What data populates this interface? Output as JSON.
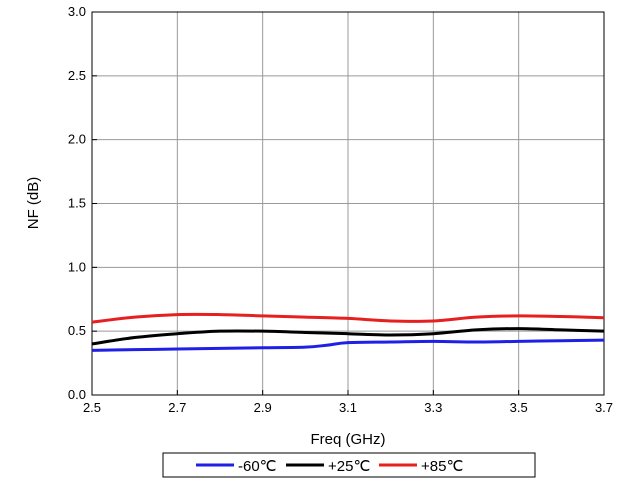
{
  "chart_data": {
    "type": "line",
    "xlabel": "Freq (GHz)",
    "ylabel": "NF (dB)",
    "xlim": [
      2.5,
      3.7
    ],
    "ylim": [
      0.0,
      3.0
    ],
    "xticks": [
      "2.5",
      "2.7",
      "2.9",
      "3.1",
      "3.3",
      "3.5",
      "3.7"
    ],
    "yticks": [
      "0.0",
      "0.5",
      "1.0",
      "1.5",
      "2.0",
      "2.5",
      "3.0"
    ],
    "grid": true,
    "legend_position": "bottom",
    "series": [
      {
        "name": "-60℃",
        "color": "#1f1fe6",
        "x": [
          2.5,
          2.6,
          2.7,
          2.8,
          2.9,
          3.0,
          3.05,
          3.1,
          3.2,
          3.3,
          3.4,
          3.5,
          3.6,
          3.7
        ],
        "y": [
          0.35,
          0.355,
          0.36,
          0.365,
          0.37,
          0.375,
          0.39,
          0.41,
          0.415,
          0.42,
          0.415,
          0.42,
          0.425,
          0.43
        ]
      },
      {
        "name": "+25℃",
        "color": "#000000",
        "x": [
          2.5,
          2.6,
          2.7,
          2.8,
          2.9,
          3.0,
          3.1,
          3.2,
          3.3,
          3.4,
          3.5,
          3.6,
          3.7
        ],
        "y": [
          0.4,
          0.45,
          0.48,
          0.5,
          0.5,
          0.49,
          0.48,
          0.47,
          0.48,
          0.51,
          0.52,
          0.51,
          0.5
        ]
      },
      {
        "name": "+85℃",
        "color": "#e61f1f",
        "x": [
          2.5,
          2.6,
          2.7,
          2.8,
          2.9,
          3.0,
          3.1,
          3.2,
          3.3,
          3.4,
          3.5,
          3.6,
          3.7
        ],
        "y": [
          0.57,
          0.61,
          0.63,
          0.63,
          0.62,
          0.61,
          0.6,
          0.58,
          0.58,
          0.61,
          0.62,
          0.615,
          0.605
        ]
      }
    ]
  }
}
